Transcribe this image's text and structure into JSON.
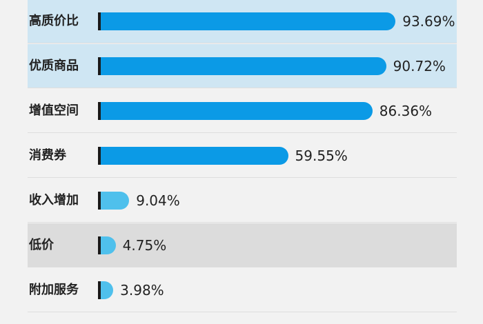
{
  "chart_data": {
    "type": "bar",
    "orientation": "horizontal",
    "categories": [
      "高质价比",
      "优质商品",
      "增值空间",
      "消费券",
      "收入增加",
      "低价",
      "附加服务"
    ],
    "values": [
      93.69,
      90.72,
      86.36,
      59.55,
      9.04,
      4.75,
      3.98
    ],
    "value_labels": [
      "93.69%",
      "90.72%",
      "86.36%",
      "59.55%",
      "9.04%",
      "4.75%",
      "3.98%"
    ],
    "xlim": [
      0,
      100
    ],
    "grid": false,
    "legend": "none",
    "colors": {
      "bar_dark": "#0b9ae6",
      "bar_light": "#4fc0ec",
      "tick": "#1a1a1a",
      "highlight_blue": "#cfe6f3",
      "highlight_gray": "#dcdcdc"
    }
  }
}
